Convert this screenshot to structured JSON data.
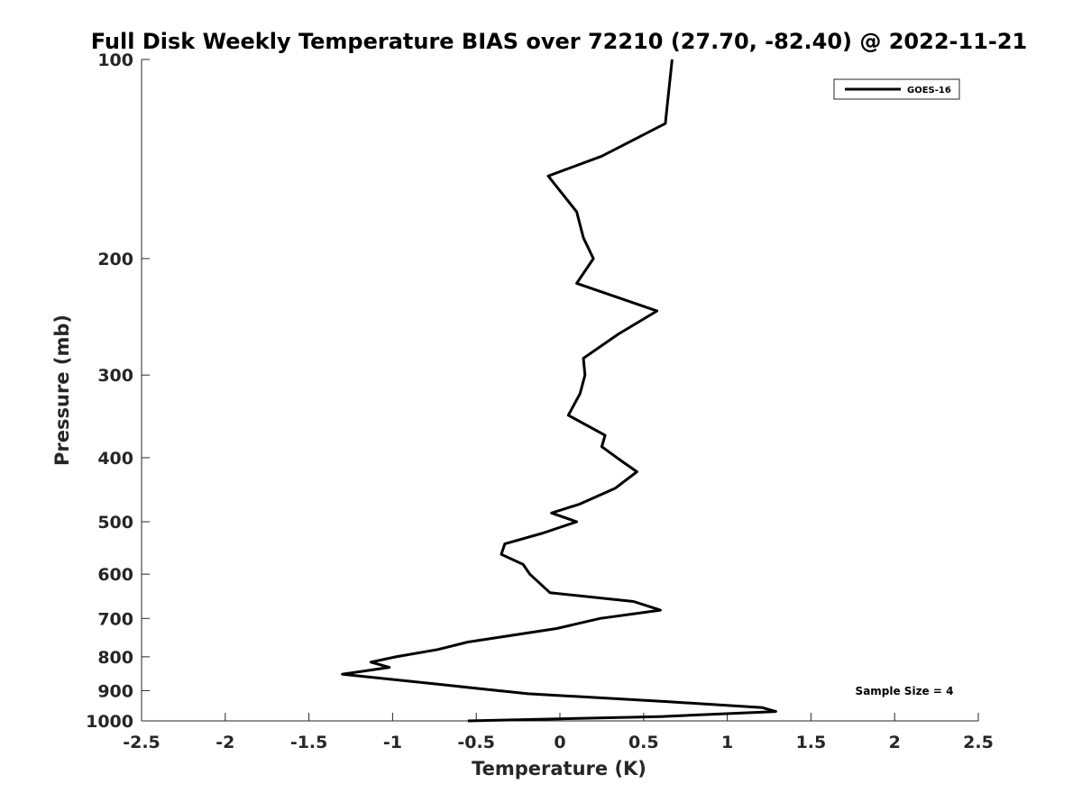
{
  "chart_data": {
    "type": "line",
    "title": "Full Disk Weekly Temperature BIAS over 72210 (27.70, -82.40) @ 2022-11-21",
    "xlabel": "Temperature (K)",
    "ylabel": "Pressure (mb)",
    "xlim": [
      -2.5,
      2.5
    ],
    "ylim": [
      1000,
      100
    ],
    "y_scale": "log",
    "y_reversed": true,
    "grid": false,
    "legend_location": "top-right",
    "x_ticks": [
      -2.5,
      -2,
      -1.5,
      -1,
      -0.5,
      0,
      0.5,
      1,
      1.5,
      2,
      2.5
    ],
    "x_tick_labels": [
      "-2.5",
      "-2",
      "-1.5",
      "-1",
      "-0.5",
      "0",
      "0.5",
      "1",
      "1.5",
      "2",
      "2.5"
    ],
    "y_ticks": [
      100,
      200,
      300,
      400,
      500,
      600,
      700,
      800,
      900,
      1000
    ],
    "y_tick_labels": [
      "100",
      "200",
      "300",
      "400",
      "500",
      "600",
      "700",
      "800",
      "900",
      "1000"
    ],
    "annotation": "Sample Size = 4",
    "series": [
      {
        "name": "GOES-16",
        "color": "#000000",
        "points": [
          {
            "x": 0.67,
            "p": 100
          },
          {
            "x": 0.63,
            "p": 125
          },
          {
            "x": 0.25,
            "p": 140
          },
          {
            "x": -0.07,
            "p": 150
          },
          {
            "x": 0.1,
            "p": 170
          },
          {
            "x": 0.14,
            "p": 186
          },
          {
            "x": 0.2,
            "p": 200
          },
          {
            "x": 0.1,
            "p": 218
          },
          {
            "x": 0.58,
            "p": 240
          },
          {
            "x": 0.35,
            "p": 260
          },
          {
            "x": 0.14,
            "p": 283
          },
          {
            "x": 0.15,
            "p": 300
          },
          {
            "x": 0.12,
            "p": 320
          },
          {
            "x": 0.05,
            "p": 345
          },
          {
            "x": 0.27,
            "p": 370
          },
          {
            "x": 0.25,
            "p": 385
          },
          {
            "x": 0.37,
            "p": 405
          },
          {
            "x": 0.46,
            "p": 420
          },
          {
            "x": 0.33,
            "p": 445
          },
          {
            "x": 0.12,
            "p": 470
          },
          {
            "x": -0.05,
            "p": 485
          },
          {
            "x": 0.1,
            "p": 500
          },
          {
            "x": -0.1,
            "p": 520
          },
          {
            "x": -0.33,
            "p": 540
          },
          {
            "x": -0.35,
            "p": 560
          },
          {
            "x": -0.22,
            "p": 580
          },
          {
            "x": -0.18,
            "p": 600
          },
          {
            "x": -0.06,
            "p": 640
          },
          {
            "x": 0.44,
            "p": 660
          },
          {
            "x": 0.6,
            "p": 680
          },
          {
            "x": 0.24,
            "p": 700
          },
          {
            "x": -0.02,
            "p": 725
          },
          {
            "x": -0.55,
            "p": 760
          },
          {
            "x": -0.73,
            "p": 780
          },
          {
            "x": -0.98,
            "p": 800
          },
          {
            "x": -1.13,
            "p": 815
          },
          {
            "x": -1.02,
            "p": 830
          },
          {
            "x": -1.3,
            "p": 850
          },
          {
            "x": -0.73,
            "p": 880
          },
          {
            "x": -0.19,
            "p": 910
          },
          {
            "x": 0.64,
            "p": 935
          },
          {
            "x": 1.21,
            "p": 955
          },
          {
            "x": 1.29,
            "p": 968
          },
          {
            "x": 0.6,
            "p": 985
          },
          {
            "x": -0.55,
            "p": 1000
          }
        ]
      }
    ]
  }
}
